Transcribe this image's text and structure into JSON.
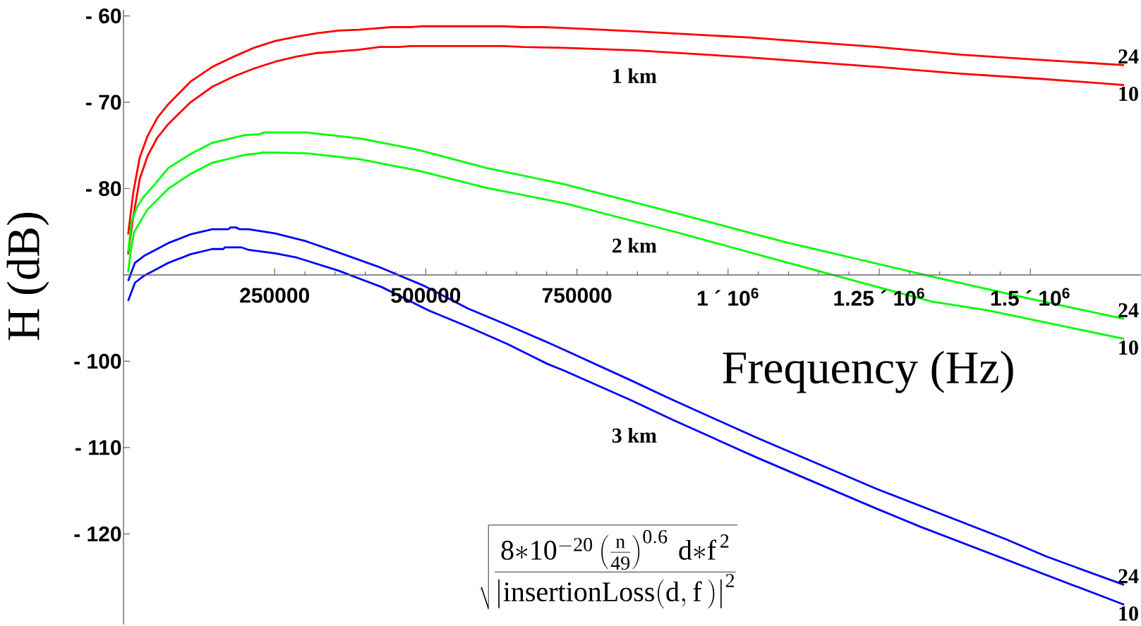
{
  "chart_data": {
    "type": "line",
    "xlabel": "Frequency (Hz)",
    "ylabel": "H (dB)",
    "xlim": [
      0,
      1683000
    ],
    "ylim": [
      -130.5,
      -59.3
    ],
    "xticks": [
      250000,
      500000,
      750000,
      {
        "value": 1000000,
        "label": "1 ´ 10$^{6}$"
      },
      {
        "value": 1250000,
        "label": "1.25 ´ 10$^{6}$"
      },
      {
        "value": 1500000,
        "label": "1.5 ´ 10$^{6}$"
      }
    ],
    "yticks": [
      {
        "value": -60,
        "label": "- 60"
      },
      {
        "value": -70,
        "label": "- 70"
      },
      {
        "value": -80,
        "label": "- 80"
      },
      {
        "value": -100,
        "label": "- 100"
      },
      {
        "value": -110,
        "label": "- 110"
      },
      {
        "value": -120,
        "label": "- 120"
      }
    ],
    "series": [
      {
        "name": "24",
        "color": "#ff0000",
        "x": [
          7700,
          16100,
          26800,
          39900,
          56000,
          74400,
          111000,
          147000,
          183000,
          215600,
          251000,
          287000,
          320000,
          355500,
          391000,
          442000,
          474600,
          492500,
          626500,
          662000,
          695000,
          729500,
          851000,
          1033600,
          1246400,
          1386300,
          1520000,
          1655000
        ],
        "values": [
          -85.3,
          -80.5,
          -76.4,
          -73.9,
          -71.8,
          -70.2,
          -67.6,
          -65.9,
          -64.7,
          -63.7,
          -62.9,
          -62.4,
          -62.0,
          -61.7,
          -61.6,
          -61.3,
          -61.3,
          -61.2,
          -61.2,
          -61.3,
          -61.3,
          -61.4,
          -61.8,
          -62.5,
          -63.6,
          -64.5,
          -65.1,
          -65.7
        ]
      },
      {
        "name": "10",
        "color": "#ff0000",
        "x": [
          7700,
          14900,
          26800,
          39900,
          56000,
          74400,
          111000,
          147000,
          183000,
          215600,
          251000,
          287000,
          320000,
          355500,
          391000,
          424000,
          456700,
          474600,
          629500,
          662000,
          729500,
          851000,
          1033600,
          1246400,
          1386300,
          1520000,
          1655000
        ],
        "values": [
          -87.6,
          -83.8,
          -78.9,
          -76.2,
          -74.1,
          -72.5,
          -70.0,
          -68.2,
          -67.0,
          -66.1,
          -65.3,
          -64.7,
          -64.3,
          -64.1,
          -63.9,
          -63.6,
          -63.6,
          -63.5,
          -63.5,
          -63.6,
          -63.7,
          -64.0,
          -64.8,
          -65.9,
          -66.7,
          -67.3,
          -68.0
        ]
      },
      {
        "name": "24",
        "color": "#00ff00",
        "x": [
          7700,
          13100,
          22000,
          32800,
          51800,
          74400,
          111000,
          147000,
          200700,
          224500,
          233400,
          302000,
          391000,
          486500,
          599700,
          729500,
          911800,
          1094300,
          1337600,
          1489700,
          1655000
        ],
        "values": [
          -87.4,
          -83.9,
          -82.2,
          -81.0,
          -79.5,
          -77.6,
          -76.0,
          -74.7,
          -73.8,
          -73.7,
          -73.5,
          -73.5,
          -74.2,
          -75.5,
          -77.6,
          -79.5,
          -82.8,
          -86.2,
          -90.2,
          -92.6,
          -95.1
        ]
      },
      {
        "name": "10",
        "color": "#00ff00",
        "x": [
          7700,
          11300,
          17300,
          23800,
          39900,
          74400,
          111000,
          147000,
          200700,
          224500,
          230400,
          302000,
          391000,
          486500,
          599700,
          729500,
          911800,
          1094300,
          1337600,
          1428800,
          1655000
        ],
        "values": [
          -89.7,
          -87.6,
          -85.1,
          -84.3,
          -82.4,
          -80.0,
          -78.3,
          -77.0,
          -76.1,
          -75.9,
          -75.8,
          -75.9,
          -76.6,
          -77.9,
          -79.9,
          -81.7,
          -85.0,
          -88.5,
          -93.1,
          -94.1,
          -97.4
        ]
      },
      {
        "name": "24",
        "color": "#0000ff",
        "x": [
          7700,
          19000,
          33900,
          74400,
          111000,
          147000,
          173900,
          176900,
          185800,
          191700,
          206600,
          251000,
          302000,
          355500,
          427000,
          498400,
          570000,
          635000,
          701000,
          729500,
          838900,
          905800,
          1045700,
          1246400,
          1459200,
          1526100,
          1655000
        ],
        "values": [
          -90.7,
          -88.6,
          -87.8,
          -86.3,
          -85.3,
          -84.7,
          -84.7,
          -84.5,
          -84.5,
          -84.7,
          -84.7,
          -85.2,
          -86.1,
          -87.4,
          -89.2,
          -91.3,
          -93.9,
          -95.8,
          -97.8,
          -98.7,
          -102.2,
          -104.4,
          -108.8,
          -114.8,
          -120.6,
          -122.6,
          -125.9
        ]
      },
      {
        "name": "10",
        "color": "#0000ff",
        "x": [
          7700,
          19000,
          33900,
          74400,
          111000,
          147000,
          165000,
          168000,
          194700,
          206600,
          251000,
          287000,
          355500,
          427000,
          504400,
          570000,
          635000,
          701000,
          729500,
          838900,
          905800,
          1045700,
          1179400,
          1246400,
          1319300,
          1655000
        ],
        "values": [
          -93.0,
          -90.9,
          -90.1,
          -88.6,
          -87.6,
          -87.0,
          -87.0,
          -86.8,
          -86.8,
          -87.1,
          -87.5,
          -88.0,
          -89.5,
          -91.4,
          -94.1,
          -96.0,
          -98.0,
          -100.3,
          -101.1,
          -104.5,
          -106.7,
          -111.1,
          -115.1,
          -117.1,
          -119.2,
          -128.2
        ]
      }
    ],
    "annotations": [
      "**1 km**",
      "**2 km**",
      "**3 km**",
      "\\sqrt{\\frac{8{*}10^{-20}\\left(\\frac{\\mathrm{n}}{49}\\right)^{0.6}\\,\\mathrm{d{*}f}^{\\,2}}{\\left|\\mathrm{insertionLoss}(\\mathrm{d},\\mathrm{f}\\,)\\right|^{2}}}"
    ]
  }
}
